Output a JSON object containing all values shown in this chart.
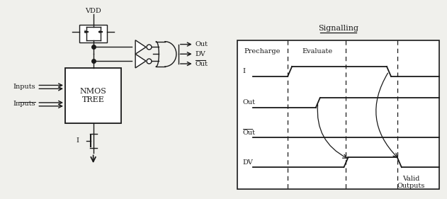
{
  "fig_width": 6.31,
  "fig_height": 2.81,
  "dpi": 100,
  "bg_color": "#f0f0ec",
  "line_color": "#1a1a1a",
  "white": "#ffffff",
  "vdd_label": "VDD",
  "nmos_label": "NMOS\nTREE",
  "inputs_label": "Inputs",
  "inputs_bar_label": "Inputs",
  "i_label": "I",
  "out_label": "Out",
  "dv_label": "DV",
  "out_bar_label": "Out",
  "signalling_title": "Signalling",
  "precharge_label": "Precharge",
  "evaluate_label": "Evaluate",
  "valid_outputs_label": "Valid\nOutputs",
  "row_labels": [
    "I",
    "Out",
    "Out",
    "DV"
  ],
  "row_overline": [
    false,
    false,
    true,
    false
  ],
  "lw": 1.0,
  "lw_sig": 1.3
}
